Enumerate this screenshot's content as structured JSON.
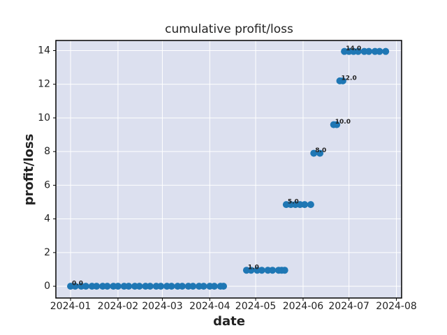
{
  "chart_data": {
    "type": "scatter",
    "title": "cumulative profit/loss",
    "x_label": "date",
    "y_label": "profit/loss",
    "x": [
      0,
      3,
      7,
      10,
      14,
      17,
      21,
      24,
      28,
      31,
      35,
      38,
      42,
      45,
      49,
      52,
      56,
      59,
      63,
      66,
      70,
      73,
      77,
      80,
      84,
      87,
      91,
      94,
      98,
      100,
      115,
      118,
      122,
      125,
      129,
      132,
      136,
      138,
      140,
      141,
      144,
      147,
      150,
      153,
      157,
      159,
      163,
      172,
      174,
      176,
      178,
      179,
      182,
      185,
      188,
      192,
      195,
      199,
      202,
      206
    ],
    "series": [
      {
        "name": "profit/loss",
        "color": "#1f77b4",
        "values": [
          0,
          0,
          0,
          0,
          0,
          0,
          0,
          0,
          0,
          0,
          0,
          0,
          0,
          0,
          0,
          0,
          0,
          0,
          0,
          0,
          0,
          0,
          0,
          0,
          0,
          0,
          0,
          0,
          0,
          0,
          0.95,
          0.95,
          0.95,
          0.95,
          0.95,
          0.95,
          0.95,
          0.95,
          0.95,
          4.85,
          4.85,
          4.85,
          4.85,
          4.85,
          4.85,
          7.9,
          7.9,
          9.6,
          9.6,
          12.2,
          12.2,
          13.95,
          13.95,
          13.95,
          13.95,
          13.95,
          13.95,
          13.95,
          13.95,
          13.95
        ]
      }
    ],
    "annotations": [
      "0.0",
      "1.0",
      "5.0",
      "8.0",
      "10.0",
      "12.0",
      "14.0"
    ],
    "xlim": [
      -9.6,
      216.4
    ],
    "ylim": [
      -0.7,
      14.6
    ],
    "xticks": [
      {
        "value": 0,
        "label": "2024-01"
      },
      {
        "value": 31,
        "label": "2024-02"
      },
      {
        "value": 60,
        "label": "2024-03"
      },
      {
        "value": 91,
        "label": "2024-04"
      },
      {
        "value": 121,
        "label": "2024-05"
      },
      {
        "value": 152,
        "label": "2024-06"
      },
      {
        "value": 182,
        "label": "2024-07"
      },
      {
        "value": 213,
        "label": "2024-08"
      }
    ],
    "yticks": [
      0,
      2,
      4,
      6,
      8,
      10,
      12,
      14
    ],
    "grid": true
  }
}
